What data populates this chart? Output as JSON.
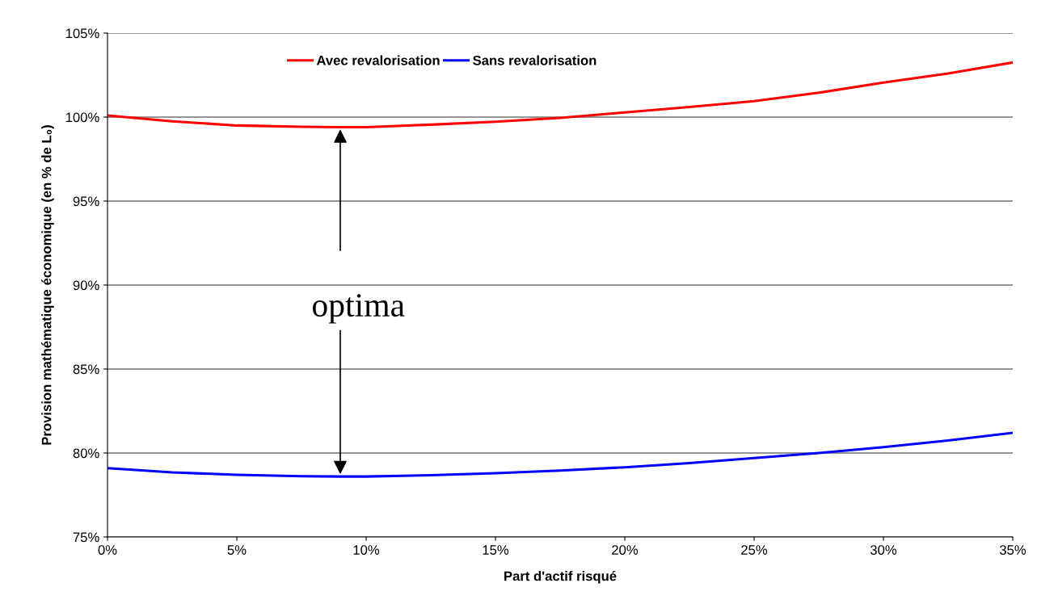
{
  "chart_data": {
    "type": "line",
    "xlabel": "Part d'actif risqué",
    "ylabel": "Provision mathématique économique (en % de L₀)",
    "x": [
      0,
      2.5,
      5,
      7.5,
      9,
      10,
      12.5,
      15,
      17.5,
      20,
      22.5,
      25,
      27.5,
      30,
      32.5,
      35
    ],
    "series": [
      {
        "name": "Avec revalorisation",
        "color": "#ff0000",
        "values": [
          100.1,
          99.75,
          99.5,
          99.42,
          99.4,
          99.4,
          99.55,
          99.72,
          99.95,
          100.28,
          100.6,
          100.95,
          101.45,
          102.05,
          102.6,
          103.25
        ]
      },
      {
        "name": "Sans revalorisation",
        "color": "#0000ff",
        "values": [
          79.1,
          78.85,
          78.7,
          78.62,
          78.6,
          78.6,
          78.68,
          78.8,
          78.95,
          79.15,
          79.4,
          79.7,
          80.0,
          80.35,
          80.75,
          81.2
        ]
      }
    ],
    "annotations": [
      {
        "text": "optima",
        "x": 9,
        "y": 78.6
      }
    ],
    "xlim": [
      0,
      35
    ],
    "xticks": [
      {
        "value": 0,
        "label": "0%"
      },
      {
        "value": 5,
        "label": "5%"
      },
      {
        "value": 10,
        "label": "10%"
      },
      {
        "value": 15,
        "label": "15%"
      },
      {
        "value": 20,
        "label": "20%"
      },
      {
        "value": 25,
        "label": "25%"
      },
      {
        "value": 30,
        "label": "30%"
      },
      {
        "value": 35,
        "label": "35%"
      }
    ],
    "ylim": [
      75,
      105
    ],
    "yticks": [
      {
        "value": 75,
        "label": "75%"
      },
      {
        "value": 80,
        "label": "80%"
      },
      {
        "value": 85,
        "label": "85%"
      },
      {
        "value": 90,
        "label": "90%"
      },
      {
        "value": 95,
        "label": "95%"
      },
      {
        "value": 100,
        "label": "100%"
      },
      {
        "value": 105,
        "label": "105%"
      }
    ],
    "grid": "y",
    "legend": "top",
    "marker": "none",
    "line_style": "solid"
  }
}
